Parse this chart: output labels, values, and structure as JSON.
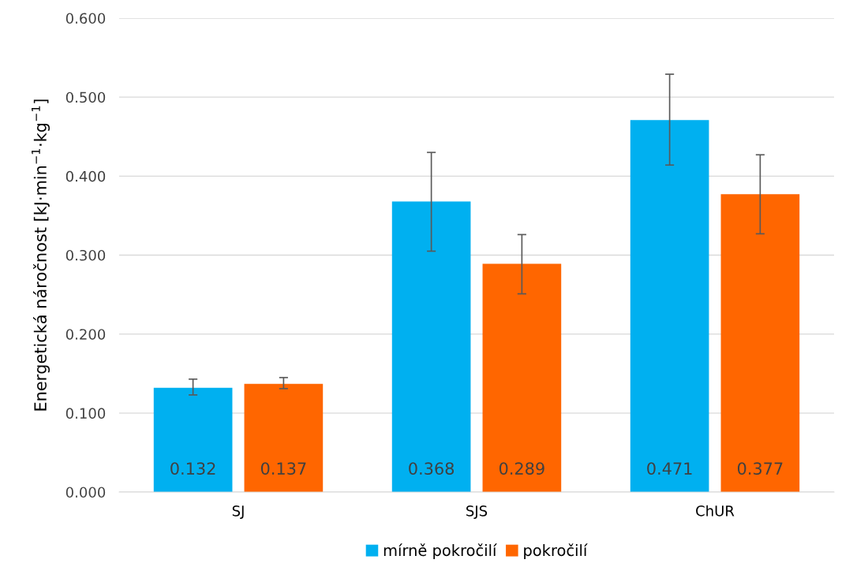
{
  "chart_data": {
    "type": "bar",
    "ylabel": "Energetická náročnost [kJ·min$^{−1}$·kg$^{−1}$]",
    "categories": [
      "SJ",
      "SJS",
      "ChUR"
    ],
    "series": [
      {
        "name": "mírně pokročilí",
        "color": "#00b0f0",
        "values": [
          0.132,
          0.368,
          0.471
        ],
        "errors": [
          [
            0.123,
            0.143
          ],
          [
            0.305,
            0.43
          ],
          [
            0.414,
            0.529
          ]
        ]
      },
      {
        "name": "pokročilí",
        "color": "#ff6600",
        "values": [
          0.137,
          0.289,
          0.377
        ],
        "errors": [
          [
            0.131,
            0.145
          ],
          [
            0.251,
            0.326
          ],
          [
            0.327,
            0.427
          ]
        ]
      }
    ],
    "ylim": [
      0,
      0.6
    ],
    "yticks": [
      {
        "value": 0,
        "label": "0.000"
      },
      {
        "value": 0.1,
        "label": "0.100"
      },
      {
        "value": 0.2,
        "label": "0.200"
      },
      {
        "value": 0.3,
        "label": "0.300"
      },
      {
        "value": 0.4,
        "label": "0.400"
      },
      {
        "value": 0.5,
        "label": "0.500"
      },
      {
        "value": 0.6,
        "label": "0.600"
      }
    ],
    "grid": "y",
    "legend": "bottom",
    "data_labels": true
  }
}
